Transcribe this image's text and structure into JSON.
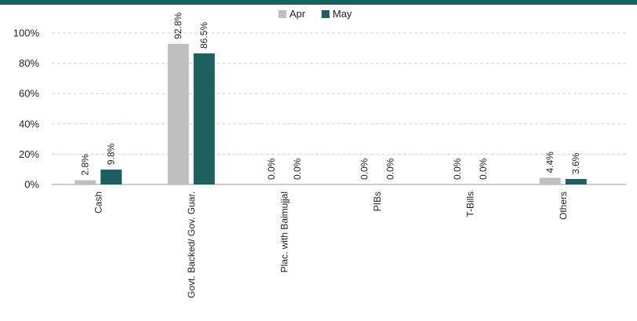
{
  "colors": {
    "header_bar": "#1b5e5f",
    "apr": "#bfbfbf",
    "may": "#1d5e5f"
  },
  "chart_data": {
    "type": "bar",
    "categories": [
      "Cash",
      "Govt. Backed/ Gov. Guar.",
      "Plac. with Baimujjal",
      "PIBs",
      "T-Bills",
      "Others"
    ],
    "series": [
      {
        "name": "Apr",
        "values": [
          2.8,
          92.8,
          0.0,
          0.0,
          0.0,
          4.4
        ],
        "labels": [
          "2.8%",
          "92.8%",
          "0.0%",
          "0.0%",
          "0.0%",
          "4.4%"
        ]
      },
      {
        "name": "May",
        "values": [
          9.8,
          86.5,
          0.0,
          0.0,
          0.0,
          3.6
        ],
        "labels": [
          "9.8%",
          "86.5%",
          "0.0%",
          "0.0%",
          "0.0%",
          "3.6%"
        ]
      }
    ],
    "ylim": [
      0,
      100
    ],
    "yticks": [
      "0%",
      "20%",
      "40%",
      "60%",
      "80%",
      "100%"
    ],
    "unit": "%",
    "grid": true,
    "legend": "top-center"
  }
}
